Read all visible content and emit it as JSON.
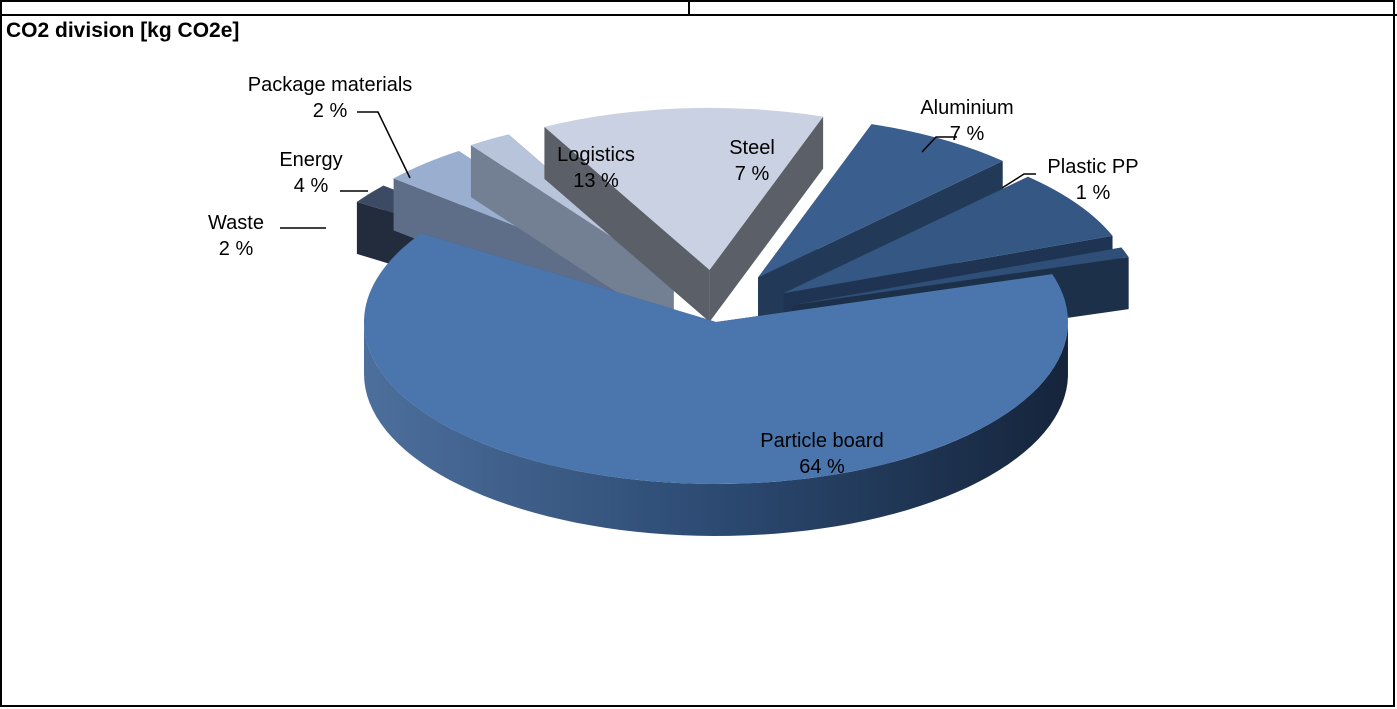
{
  "header": {
    "title": "CO2 division [kg CO2e]"
  },
  "chart_data": {
    "type": "pie",
    "title": "CO2 division [kg CO2e]",
    "style": "3d-exploded",
    "slices": [
      {
        "label": "Particle board",
        "value": 64,
        "value_label": "64 %",
        "color": "#4a76ad",
        "side": "#2c4a72"
      },
      {
        "label": "Waste",
        "value": 2,
        "value_label": "2 %",
        "color": "#3c4a64",
        "side": "#232c3c"
      },
      {
        "label": "Energy",
        "value": 4,
        "value_label": "4 %",
        "color": "#9aaed0",
        "side": "#5e6e88"
      },
      {
        "label": "Package materials",
        "value": 2,
        "value_label": "2 %",
        "color": "#b8c4da",
        "side": "#737f92"
      },
      {
        "label": "Logistics",
        "value": 13,
        "value_label": "13 %",
        "color": "#c9d1e2",
        "side": "#5b5f68"
      },
      {
        "label": "Steel",
        "value": 7,
        "value_label": "7 %",
        "color": "#3a5f8f",
        "side": "#223a58"
      },
      {
        "label": "Aluminium",
        "value": 7,
        "value_label": "7 %",
        "color": "#345784",
        "side": "#1f3452"
      },
      {
        "label": "Plastic PP",
        "value": 1,
        "value_label": "1 %",
        "color": "#2f4f78",
        "side": "#1c3049"
      }
    ]
  }
}
